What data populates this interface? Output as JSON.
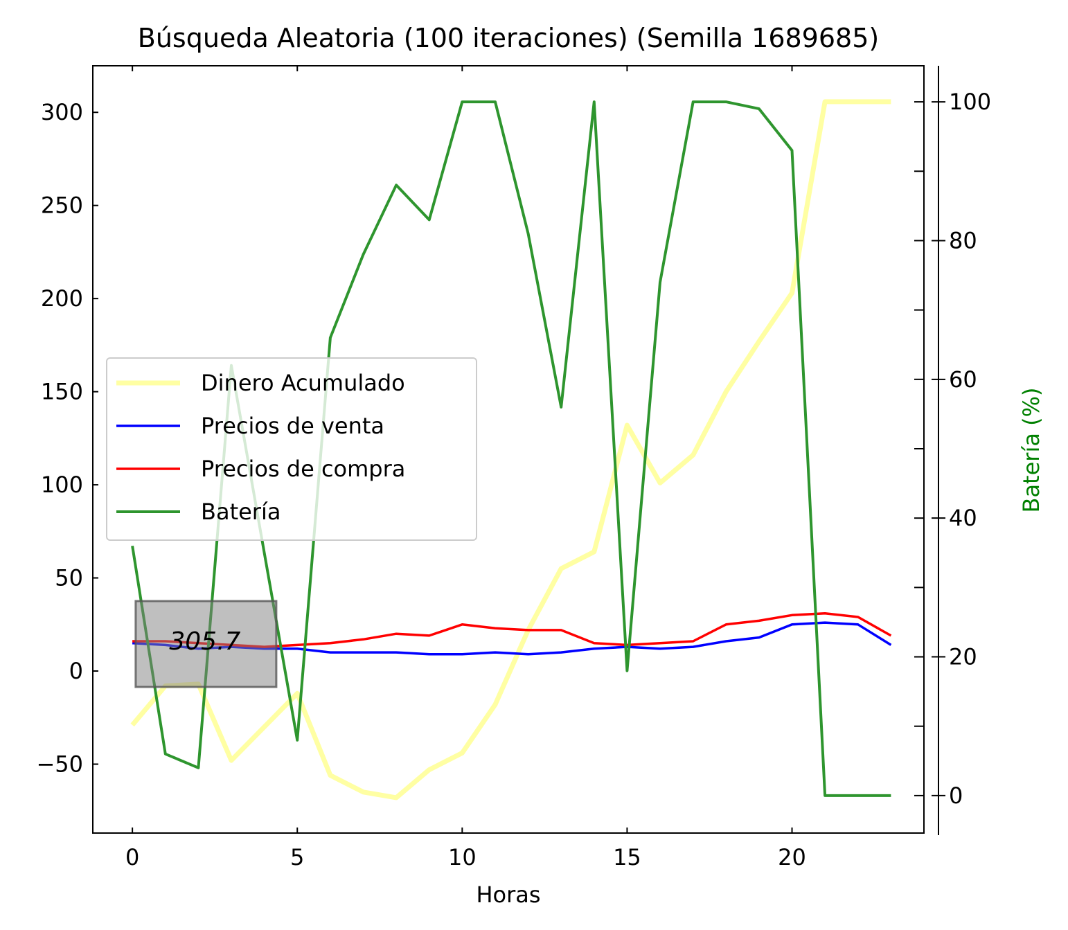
{
  "chart_data": {
    "type": "line",
    "title": "Búsqueda Aleatoria (100 iteraciones) (Semilla 1689685)",
    "xlabel": "Horas",
    "ylabel": "",
    "y2label": "Batería (%)",
    "xlim": [
      -1.2,
      24.0
    ],
    "ylim": [
      -87,
      325
    ],
    "y2lim": [
      -5.4,
      105.2
    ],
    "xticks": [
      0,
      5,
      10,
      15,
      20
    ],
    "yticks": [
      -50,
      0,
      50,
      100,
      150,
      200,
      250,
      300
    ],
    "ytick_labels": [
      "−50",
      "0",
      "50",
      "100",
      "150",
      "200",
      "250",
      "300"
    ],
    "y2ticks": [
      0,
      20,
      40,
      60,
      80,
      100
    ],
    "x": [
      0,
      1,
      2,
      3,
      4,
      5,
      6,
      7,
      8,
      9,
      10,
      11,
      12,
      13,
      14,
      15,
      16,
      17,
      18,
      19,
      20,
      21,
      22,
      23
    ],
    "series": [
      {
        "name": "Dinero Acumulado",
        "color": "#ffff66",
        "axis": "left",
        "values": [
          -29,
          -8,
          -7,
          -48,
          -30,
          -12,
          -56,
          -65,
          -68,
          -53,
          -44,
          -18,
          22,
          55,
          64,
          132,
          101,
          116,
          150,
          177,
          203,
          305.7,
          305.7,
          305.7
        ]
      },
      {
        "name": "Precios de venta",
        "color": "#0000ff",
        "axis": "left",
        "values": [
          15,
          14,
          12,
          13,
          12,
          12,
          10,
          10,
          10,
          9,
          9,
          10,
          9,
          10,
          12,
          13,
          12,
          13,
          16,
          18,
          25,
          26,
          25,
          14
        ]
      },
      {
        "name": "Precios de compra",
        "color": "#ff0000",
        "axis": "left",
        "values": [
          16,
          16,
          15,
          14,
          13,
          14,
          15,
          17,
          20,
          19,
          25,
          23,
          22,
          22,
          15,
          14,
          15,
          16,
          25,
          27,
          30,
          31,
          29,
          19
        ]
      },
      {
        "name": "Batería",
        "color": "#2e952e",
        "axis": "right",
        "values": [
          36,
          6,
          4,
          62,
          35,
          8,
          66,
          78,
          88,
          83,
          100,
          100,
          81,
          56,
          100,
          18,
          74,
          100,
          100,
          99,
          93,
          0,
          0,
          0
        ]
      }
    ],
    "annotation": {
      "text": "305.7",
      "x": 2.2,
      "y": 16
    },
    "legend_position": "center-left",
    "grid": false
  }
}
